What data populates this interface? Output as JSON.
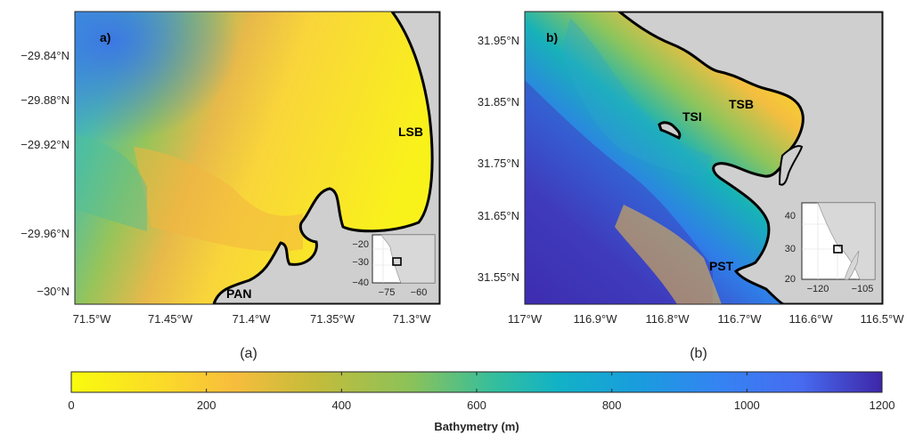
{
  "panel_a": {
    "label": "a)",
    "caption": "(a)",
    "y_ticks": [
      "−29.84°N",
      "−29.88°N",
      "−29.92°N",
      "−29.96°N",
      "−30°N"
    ],
    "x_ticks": [
      "71.5°W",
      "71.45°W",
      "71.4°W",
      "71.35°W",
      "71.3°W"
    ],
    "places": [
      "LSB",
      "PAN"
    ],
    "inset": {
      "y_ticks": [
        "−20",
        "−30",
        "−40"
      ],
      "x_ticks": [
        "−75",
        "−60"
      ]
    }
  },
  "panel_b": {
    "label": "b)",
    "caption": "(b)",
    "y_ticks": [
      "31.95°N",
      "31.85°N",
      "31.75°N",
      "31.65°N",
      "31.55°N"
    ],
    "x_ticks": [
      "117°W",
      "116.9°W",
      "116.8°W",
      "116.7°W",
      "116.6°W",
      "116.5°W"
    ],
    "places": [
      "TSI",
      "TSB",
      "PST"
    ],
    "inset": {
      "y_ticks": [
        "40",
        "30",
        "20"
      ],
      "x_ticks": [
        "−120",
        "−105"
      ]
    }
  },
  "colorbar": {
    "title": "Bathymetry (m)",
    "ticks": [
      "0",
      "200",
      "400",
      "600",
      "800",
      "1000",
      "1200"
    ],
    "range": [
      0,
      1200
    ],
    "colormap": "parula-reversed"
  },
  "colors": {
    "land": "#cfcfcf",
    "coast": "#000000",
    "shallow": "#f9fb0e",
    "deep": "#3e26a8"
  }
}
